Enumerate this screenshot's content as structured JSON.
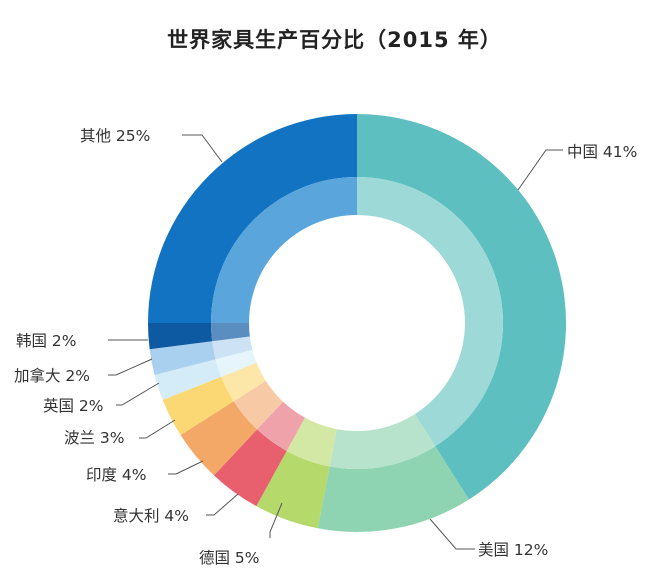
{
  "chart_data": {
    "type": "pie",
    "title": "世界家具生产百分比（2015 年）",
    "categories": [
      "中国",
      "美国",
      "德国",
      "意大利",
      "印度",
      "波兰",
      "英国",
      "加拿大",
      "韩国",
      "其他"
    ],
    "values": [
      41,
      12,
      5,
      4,
      4,
      3,
      2,
      2,
      2,
      25
    ],
    "unit": "%",
    "labels": [
      "中国 41%",
      "美国 12%",
      "德国 5%",
      "意大利 4%",
      "印度 4%",
      "波兰 3%",
      "英国 2%",
      "加拿大 2%",
      "韩国 2%",
      "其他 25%"
    ],
    "colors": [
      "#5dbfbf",
      "#8ed4b2",
      "#b5d96b",
      "#e8606e",
      "#f4a868",
      "#fbd873",
      "#d3ecf7",
      "#a9d0ee",
      "#0d5aa3",
      "#1273c2"
    ],
    "inner_colors": [
      "#9cd9d7",
      "#b7e3cc",
      "#d3e8a5",
      "#f0a2aa",
      "#f8c9a5",
      "#fce7a9",
      "#e6f4fb",
      "#cde3f5",
      "#5a8ec0",
      "#5aa5dc"
    ],
    "legend": "none",
    "chart_style": "donut"
  }
}
